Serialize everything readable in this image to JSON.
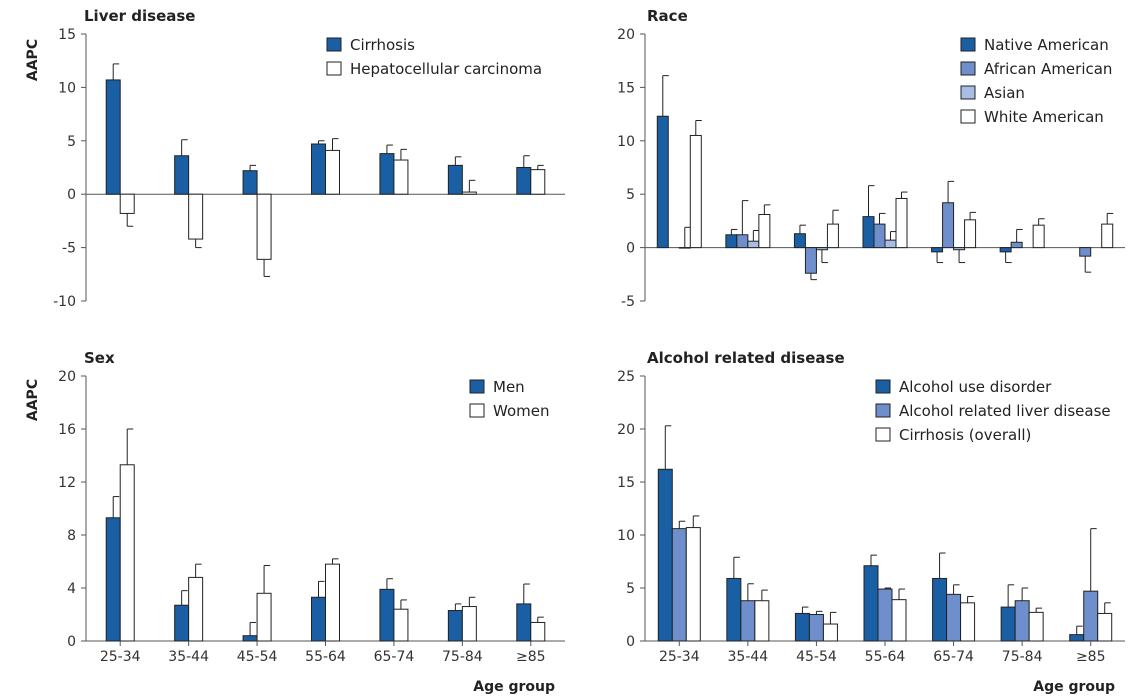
{
  "figure": {
    "ylabel": "AAPC",
    "xlabel": "Age group"
  },
  "colors": {
    "dark_blue": "#1a5fa3",
    "mid_blue": "#6f8fcc",
    "light_blue": "#a8bde6",
    "white": "#ffffff",
    "edge": "#222222",
    "background": "#ffffff"
  },
  "chart_data": [
    {
      "id": "liver",
      "type": "bar",
      "title": "Liver disease",
      "ylabel": "AAPC",
      "xlabel": "",
      "categories": [
        "25-34",
        "35-44",
        "45-54",
        "55-64",
        "65-74",
        "75-84",
        "≥85"
      ],
      "ylim": [
        -10,
        15
      ],
      "yticks": [
        -10,
        -5,
        0,
        5,
        10,
        15
      ],
      "legend_position": "top-right",
      "series": [
        {
          "name": "Cirrhosis",
          "color": "#1a5fa3",
          "values": [
            10.7,
            3.6,
            2.2,
            4.7,
            3.8,
            2.7,
            2.5
          ],
          "errors": [
            1.5,
            1.5,
            0.5,
            0.3,
            0.8,
            0.8,
            1.1
          ]
        },
        {
          "name": "Hepatocellular carcinoma",
          "color": "#ffffff",
          "values": [
            -1.8,
            -4.2,
            -6.1,
            4.1,
            3.2,
            0.2,
            2.3
          ],
          "errors": [
            1.2,
            0.8,
            1.6,
            1.1,
            1.0,
            1.1,
            0.4
          ]
        }
      ]
    },
    {
      "id": "race",
      "type": "bar",
      "title": "Race",
      "ylabel": "",
      "xlabel": "",
      "categories": [
        "25-34",
        "35-44",
        "45-54",
        "55-64",
        "65-74",
        "75-84",
        "≥85"
      ],
      "ylim": [
        -5,
        20
      ],
      "yticks": [
        -5,
        0,
        5,
        10,
        15,
        20
      ],
      "legend_position": "top-right",
      "series": [
        {
          "name": "Native American",
          "color": "#1a5fa3",
          "values": [
            12.3,
            1.2,
            1.3,
            2.9,
            -0.4,
            -0.4,
            null
          ],
          "errors": [
            3.8,
            0.5,
            0.8,
            2.9,
            1.0,
            1.0,
            null
          ]
        },
        {
          "name": "African American",
          "color": "#6f8fcc",
          "values": [
            null,
            1.2,
            -2.4,
            2.2,
            4.2,
            0.5,
            -0.8
          ],
          "errors": [
            null,
            3.2,
            0.6,
            1.0,
            2.0,
            1.2,
            1.5
          ]
        },
        {
          "name": "Asian",
          "color": "#a8bde6",
          "values": [
            0.0,
            0.6,
            -0.2,
            0.7,
            -0.2,
            null,
            null
          ],
          "errors": [
            1.9,
            1.0,
            1.2,
            0.8,
            1.2,
            null,
            null
          ]
        },
        {
          "name": "White American",
          "color": "#ffffff",
          "values": [
            10.5,
            3.1,
            2.2,
            4.6,
            2.6,
            2.1,
            2.2
          ],
          "errors": [
            1.4,
            0.9,
            1.3,
            0.6,
            0.7,
            0.6,
            1.0
          ]
        }
      ]
    },
    {
      "id": "sex",
      "type": "bar",
      "title": "Sex",
      "ylabel": "AAPC",
      "xlabel": "Age group",
      "categories": [
        "25-34",
        "35-44",
        "45-54",
        "55-64",
        "65-74",
        "75-84",
        "≥85"
      ],
      "ylim": [
        0,
        20
      ],
      "yticks": [
        0,
        4,
        8,
        12,
        16,
        20
      ],
      "legend_position": "top-right",
      "series": [
        {
          "name": "Men",
          "color": "#1a5fa3",
          "values": [
            9.3,
            2.7,
            0.4,
            3.3,
            3.9,
            2.3,
            2.8
          ],
          "errors": [
            1.6,
            1.1,
            1.0,
            1.2,
            0.8,
            0.5,
            1.5
          ]
        },
        {
          "name": "Women",
          "color": "#ffffff",
          "values": [
            13.3,
            4.8,
            3.6,
            5.8,
            2.4,
            2.6,
            1.4
          ],
          "errors": [
            2.7,
            1.0,
            2.1,
            0.4,
            0.7,
            0.7,
            0.4
          ]
        }
      ]
    },
    {
      "id": "alcohol",
      "type": "bar",
      "title": "Alcohol related disease",
      "ylabel": "",
      "xlabel": "Age group",
      "categories": [
        "25-34",
        "35-44",
        "45-54",
        "55-64",
        "65-74",
        "75-84",
        "≥85"
      ],
      "ylim": [
        0,
        25
      ],
      "yticks": [
        0,
        5,
        10,
        15,
        20,
        25
      ],
      "legend_position": "top-right",
      "series": [
        {
          "name": "Alcohol use disorder",
          "color": "#1a5fa3",
          "values": [
            16.2,
            5.9,
            2.6,
            7.1,
            5.9,
            3.2,
            0.6
          ],
          "errors": [
            4.1,
            2.0,
            0.6,
            1.0,
            2.4,
            2.1,
            0.8
          ]
        },
        {
          "name": "Alcohol related liver disease",
          "color": "#6f8fcc",
          "values": [
            10.6,
            3.8,
            2.5,
            4.9,
            4.4,
            3.8,
            4.7
          ],
          "errors": [
            0.7,
            1.6,
            0.3,
            0.1,
            0.9,
            1.2,
            5.9
          ]
        },
        {
          "name": "Cirrhosis (overall)",
          "color": "#ffffff",
          "values": [
            10.7,
            3.8,
            1.6,
            3.9,
            3.6,
            2.7,
            2.6
          ],
          "errors": [
            1.1,
            1.0,
            1.1,
            1.0,
            0.6,
            0.4,
            1.0
          ]
        }
      ]
    }
  ]
}
